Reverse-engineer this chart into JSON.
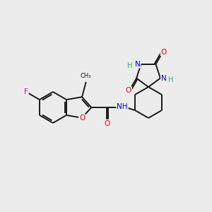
{
  "bg_color": "#ececec",
  "bond_color": "#1a1a1a",
  "atom_colors": {
    "O": "#e8000d",
    "N": "#0000cc",
    "F": "#cc00cc",
    "H": "#2aad7a",
    "C": "#1a1a1a"
  },
  "figsize": [
    3.0,
    3.0
  ],
  "dpi": 100,
  "lw": 1.4,
  "fontsize": 7.5
}
